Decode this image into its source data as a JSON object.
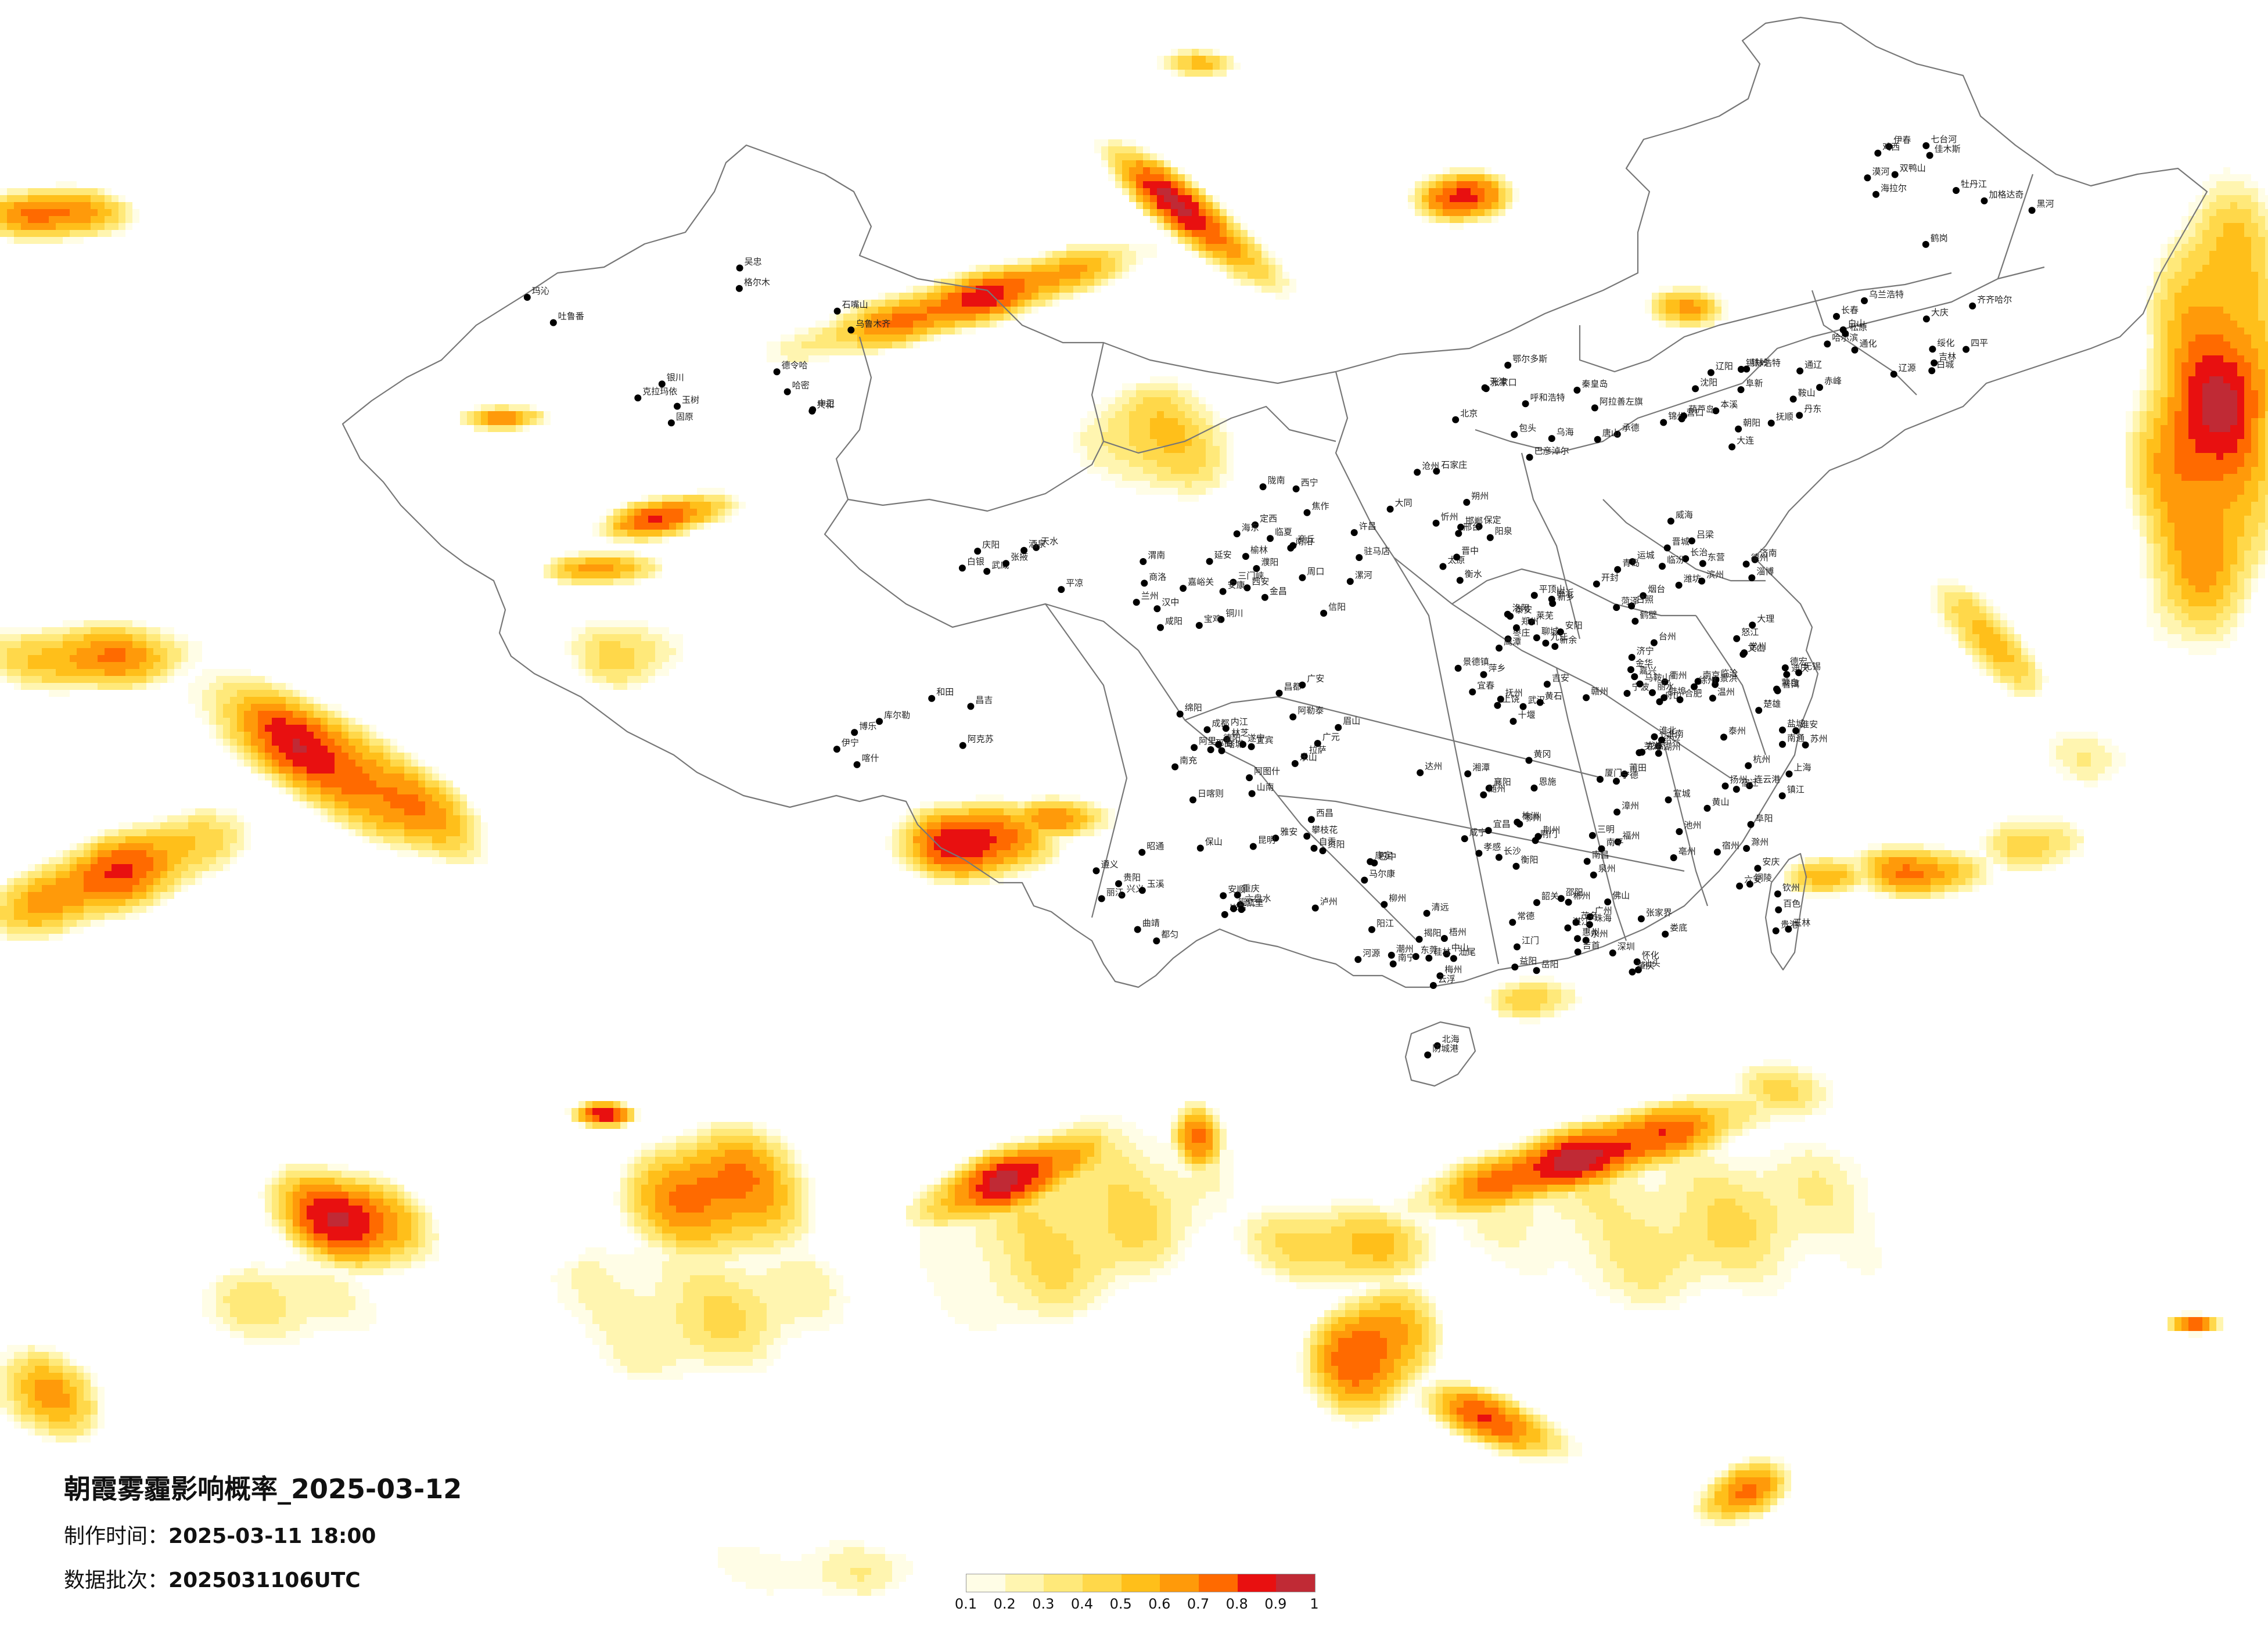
{
  "title": "朝霞雾霾影响概率_2025-03-12",
  "meta": {
    "made_label": "制作时间：",
    "made_value": "2025-03-11 18:00",
    "batch_label": "数据批次：",
    "batch_value": "2025031106UTC"
  },
  "legend": {
    "ticks": [
      "0.1",
      "0.2",
      "0.3",
      "0.4",
      "0.5",
      "0.6",
      "0.7",
      "0.8",
      "0.9",
      "1"
    ],
    "colors": [
      "#fffde6",
      "#fff5b0",
      "#ffe97a",
      "#ffd84a",
      "#ffbf1a",
      "#ff9a0a",
      "#ff6a00",
      "#e81010",
      "#c02a35"
    ]
  },
  "cities": [
    "漠河",
    "加格达奇",
    "海拉尔",
    "黑河",
    "伊春",
    "鹤岗",
    "佳木斯",
    "双鸭山",
    "七台河",
    "鸡西",
    "牡丹江",
    "齐齐哈尔",
    "绥化",
    "大庆",
    "哈尔滨",
    "乌兰浩特",
    "白城",
    "松原",
    "长春",
    "吉林",
    "通化",
    "四平",
    "辽源",
    "白山",
    "沈阳",
    "铁岭",
    "抚顺",
    "本溪",
    "丹东",
    "辽阳",
    "鞍山",
    "营口",
    "锦州",
    "葫芦岛",
    "朝阳",
    "阜新",
    "大连",
    "通辽",
    "赤峰",
    "锡林浩特",
    "呼和浩特",
    "包头",
    "乌海",
    "鄂尔多斯",
    "巴彦淖尔",
    "阿拉善左旗",
    "张家口",
    "承德",
    "北京",
    "天津",
    "唐山",
    "秦皇岛",
    "保定",
    "石家庄",
    "沧州",
    "衡水",
    "邢台",
    "邯郸",
    "大同",
    "朔州",
    "忻州",
    "太原",
    "阳泉",
    "晋中",
    "吕梁",
    "长治",
    "晋城",
    "临汾",
    "运城",
    "济南",
    "青岛",
    "烟台",
    "威海",
    "潍坊",
    "淄博",
    "东营",
    "滨州",
    "德州",
    "聊城",
    "泰安",
    "莱芜",
    "济宁",
    "临沂",
    "日照",
    "枣庄",
    "菏泽",
    "郑州",
    "开封",
    "洛阳",
    "平顶山",
    "安阳",
    "鹤壁",
    "新乡",
    "焦作",
    "濮阳",
    "许昌",
    "漯河",
    "三门峡",
    "南阳",
    "商丘",
    "信阳",
    "周口",
    "驻马店",
    "西安",
    "铜川",
    "宝鸡",
    "咸阳",
    "渭南",
    "延安",
    "汉中",
    "榆林",
    "安康",
    "商洛",
    "兰州",
    "嘉峪关",
    "金昌",
    "白银",
    "天水",
    "武威",
    "张掖",
    "平凉",
    "酒泉",
    "庆阳",
    "定西",
    "陇南",
    "临夏",
    "西宁",
    "海东",
    "格尔木",
    "德令哈",
    "共和",
    "玛沁",
    "玉树",
    "银川",
    "石嘴山",
    "吴忠",
    "固原",
    "中卫",
    "乌鲁木齐",
    "克拉玛依",
    "吐鲁番",
    "哈密",
    "昌吉",
    "博乐",
    "库尔勒",
    "阿克苏",
    "喀什",
    "和田",
    "伊宁",
    "塔城",
    "阿勒泰",
    "阿图什",
    "拉萨",
    "日喀则",
    "昌都",
    "林芝",
    "那曲",
    "阿里",
    "山南",
    "成都",
    "绵阳",
    "德阳",
    "广元",
    "遂宁",
    "内江",
    "乐山",
    "南充",
    "眉山",
    "宜宾",
    "广安",
    "达州",
    "雅安",
    "巴中",
    "资阳",
    "攀枝花",
    "泸州",
    "自贡",
    "西昌",
    "康定",
    "马尔康",
    "重庆",
    "贵阳",
    "遵义",
    "六盘水",
    "安顺",
    "毕节",
    "铜仁",
    "凯里",
    "都匀",
    "兴义",
    "昆明",
    "曲靖",
    "玉溪",
    "保山",
    "昭通",
    "丽江",
    "普洱",
    "临沧",
    "大理",
    "楚雄",
    "蒙自",
    "文山",
    "景洪",
    "德宏",
    "怒江",
    "迪庆",
    "南京",
    "无锡",
    "徐州",
    "常州",
    "苏州",
    "南通",
    "连云港",
    "淮安",
    "盐城",
    "扬州",
    "镇江",
    "泰州",
    "宿迁",
    "上海",
    "杭州",
    "宁波",
    "温州",
    "嘉兴",
    "湖州",
    "绍兴",
    "金华",
    "衢州",
    "舟山",
    "台州",
    "丽水",
    "合肥",
    "芜湖",
    "蚌埠",
    "淮南",
    "马鞍山",
    "淮北",
    "铜陵",
    "安庆",
    "黄山",
    "滁州",
    "阜阳",
    "宿州",
    "六安",
    "亳州",
    "池州",
    "宣城",
    "福州",
    "厦门",
    "莆田",
    "三明",
    "泉州",
    "漳州",
    "南平",
    "龙岩",
    "宁德",
    "南昌",
    "景德镇",
    "萍乡",
    "九江",
    "新余",
    "鹰潭",
    "赣州",
    "吉安",
    "宜春",
    "抚州",
    "上饶",
    "武汉",
    "黄石",
    "十堰",
    "宜昌",
    "襄阳",
    "鄂州",
    "荆门",
    "孝感",
    "荆州",
    "黄冈",
    "咸宁",
    "随州",
    "恩施",
    "长沙",
    "株洲",
    "湘潭",
    "衡阳",
    "邵阳",
    "岳阳",
    "常德",
    "张家界",
    "益阳",
    "郴州",
    "永州",
    "怀化",
    "娄底",
    "吉首",
    "广州",
    "韶关",
    "深圳",
    "珠海",
    "汕头",
    "佛山",
    "江门",
    "湛江",
    "茂名",
    "肇庆",
    "惠州",
    "梅州",
    "汕尾",
    "河源",
    "阳江",
    "清远",
    "东莞",
    "中山",
    "潮州",
    "揭阳",
    "云浮",
    "南宁",
    "柳州",
    "桂林",
    "梧州",
    "北海",
    "防城港",
    "钦州",
    "贵港",
    "玉林",
    "百色",
    "贺州",
    "河池",
    "来宾",
    "崇左",
    "海口",
    "三亚",
    "台北",
    "台中",
    "台南",
    "高雄"
  ]
}
